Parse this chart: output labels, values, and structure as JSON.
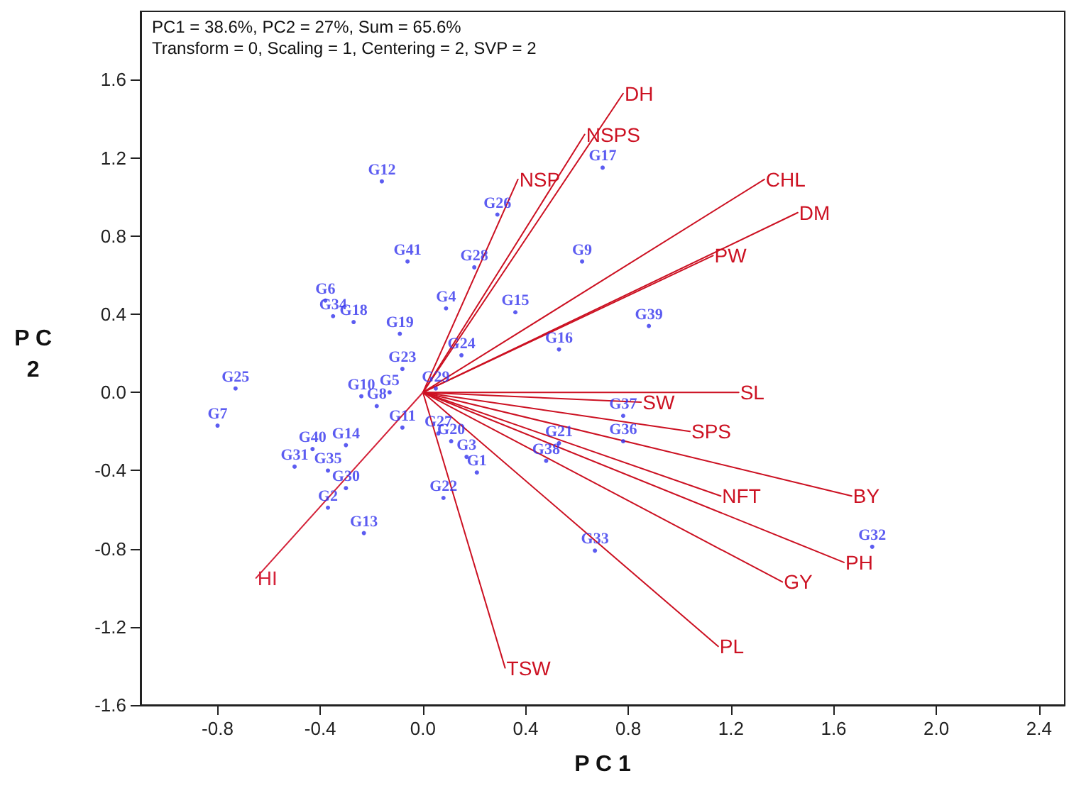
{
  "chart_data": {
    "type": "line",
    "title": "PC1 = 38.6%, PC2 = 27%, Sum = 65.6%",
    "subtitle": "Transform = 0, Scaling = 1, Centering = 2, SVP = 2",
    "xlabel": "P C 1",
    "ylabel": "P C 2",
    "xlim": [
      -1.1,
      2.5
    ],
    "ylim": [
      -1.6,
      1.95
    ],
    "xticks": [
      -0.8,
      -0.4,
      {
        "value": 0,
        "label": "0.0"
      },
      0.4,
      0.8,
      1.2,
      1.6,
      {
        "value": 2,
        "label": "2.0"
      },
      2.4
    ],
    "yticks": [
      -1.6,
      -1.2,
      -0.8,
      -0.4,
      {
        "value": 0,
        "label": "0.0"
      },
      0.4,
      0.8,
      1.2,
      1.6
    ],
    "grid": false,
    "marker": "none",
    "line_style": "solid",
    "series": [
      {
        "type": "scatter",
        "marker": "circle",
        "color": "#3333ee",
        "x": [
          0.21,
          -0.37,
          0.17,
          0.09,
          -0.13,
          -0.38,
          -0.8,
          -0.18,
          0.62,
          -0.24,
          -0.08,
          -0.16,
          -0.23,
          -0.3,
          0.36,
          0.53,
          0.7,
          -0.27,
          -0.09,
          0.11,
          0.53,
          0.08,
          -0.08,
          0.15,
          -0.73,
          0.29,
          0.06,
          0.2,
          0.05,
          -0.3,
          -0.5,
          1.75,
          0.67,
          -0.35,
          -0.37,
          0.78,
          0.78,
          0.48,
          0.88,
          -0.43,
          -0.06
        ],
        "values": [
          -0.41,
          -0.59,
          -0.33,
          0.43,
          0.0,
          0.47,
          -0.17,
          -0.07,
          0.67,
          -0.02,
          -0.18,
          1.08,
          -0.72,
          -0.27,
          0.41,
          0.22,
          1.15,
          0.36,
          0.3,
          -0.25,
          -0.26,
          -0.54,
          0.12,
          0.19,
          0.02,
          0.91,
          -0.21,
          0.64,
          0.02,
          -0.49,
          -0.38,
          -0.79,
          -0.81,
          0.39,
          -0.4,
          -0.25,
          -0.12,
          -0.35,
          0.34,
          -0.29,
          0.67
        ],
        "value_labels": [
          "G1",
          "G2",
          "G3",
          "G4",
          "G5",
          "G6",
          "G7",
          "G8",
          "G9",
          "G10",
          "G11",
          "G12",
          "G13",
          "G14",
          "G15",
          "G16",
          "G17",
          "G18",
          "G19",
          "G20",
          "G21",
          "G22",
          "G23",
          "G24",
          "G25",
          "G26",
          "G27",
          "G28",
          "G29",
          "G30",
          "G31",
          "G32",
          "G33",
          "G34",
          "G35",
          "G36",
          "G37",
          "G38",
          "G39",
          "G40",
          "G41"
        ]
      },
      {
        "name": "DH",
        "color": "#cc1122",
        "x": [
          0,
          0.78
        ],
        "values": [
          0,
          1.53
        ]
      },
      {
        "name": "NSPS",
        "color": "#cc1122",
        "x": [
          0,
          0.63
        ],
        "values": [
          0,
          1.32
        ]
      },
      {
        "name": "NSP",
        "color": "#cc1122",
        "x": [
          0,
          0.37
        ],
        "values": [
          0,
          1.09
        ]
      },
      {
        "name": "CHL",
        "color": "#cc1122",
        "x": [
          0,
          1.33
        ],
        "values": [
          0,
          1.09
        ]
      },
      {
        "name": "DM",
        "color": "#cc1122",
        "x": [
          0,
          1.46
        ],
        "values": [
          0,
          0.92
        ]
      },
      {
        "name": "PW",
        "color": "#cc1122",
        "x": [
          0,
          1.13
        ],
        "values": [
          0,
          0.7
        ]
      },
      {
        "name": "SL",
        "color": "#cc1122",
        "x": [
          0,
          1.23
        ],
        "values": [
          0,
          0.0
        ]
      },
      {
        "name": "SW",
        "color": "#cc1122",
        "x": [
          0,
          0.85
        ],
        "values": [
          0,
          -0.05
        ]
      },
      {
        "name": "SPS",
        "color": "#cc1122",
        "x": [
          0,
          1.04
        ],
        "values": [
          0,
          -0.2
        ]
      },
      {
        "name": "BY",
        "color": "#cc1122",
        "x": [
          0,
          1.67
        ],
        "values": [
          0,
          -0.53
        ]
      },
      {
        "name": "NFT",
        "color": "#cc1122",
        "x": [
          0,
          1.16
        ],
        "values": [
          0,
          -0.53
        ]
      },
      {
        "name": "PH",
        "color": "#cc1122",
        "x": [
          0,
          1.64
        ],
        "values": [
          0,
          -0.87
        ]
      },
      {
        "name": "GY",
        "color": "#cc1122",
        "x": [
          0,
          1.4
        ],
        "values": [
          0,
          -0.97
        ]
      },
      {
        "name": "PL",
        "color": "#cc1122",
        "x": [
          0,
          1.15
        ],
        "values": [
          0,
          -1.3
        ]
      },
      {
        "name": "TSW",
        "color": "#cc1122",
        "x": [
          0,
          0.32
        ],
        "values": [
          0,
          -1.41
        ]
      },
      {
        "name": "HI",
        "color": "#d4233a",
        "x": [
          0,
          -0.65
        ],
        "values": [
          0,
          -0.95
        ]
      }
    ]
  }
}
